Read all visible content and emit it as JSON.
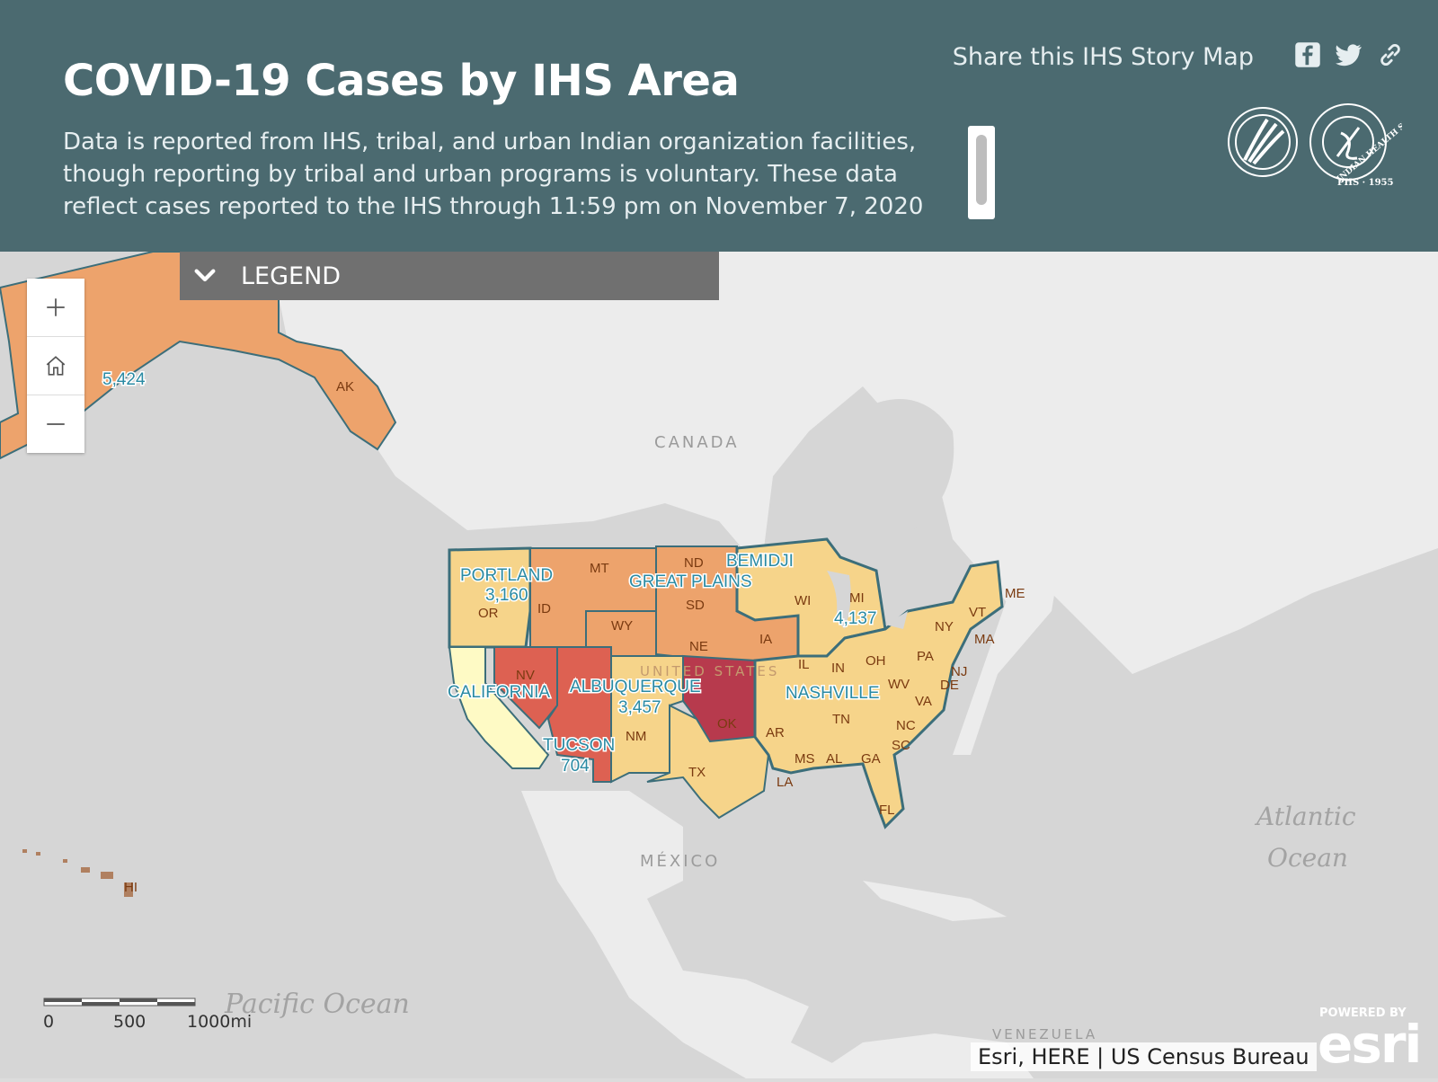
{
  "header": {
    "title": "COVID-19 Cases by IHS Area",
    "subtitle": "Data is reported from IHS, tribal, and urban Indian organization facilities, though reporting by tribal and urban programs is voluntary. These data reflect cases reported to the IHS through 11:59 pm on November 7, 2020",
    "share_label": "Share this IHS Story Map",
    "share_icons": [
      "facebook-icon",
      "twitter-icon",
      "link-icon"
    ]
  },
  "legend": {
    "label": "LEGEND"
  },
  "zoom_controls": [
    "zoom-in",
    "home",
    "zoom-out"
  ],
  "map": {
    "oceans": {
      "pacific": "Pacific Ocean",
      "atlantic_1": "Atlantic",
      "atlantic_2": "Ocean"
    },
    "countries": {
      "canada": "CANADA",
      "mexico": "MÉXICO",
      "venezuela": "VENEZUELA",
      "us_faint": "UNITED STATES"
    },
    "areas": {
      "alaska": {
        "count": "5,424"
      },
      "portland": {
        "name": "PORTLAND",
        "count": "3,160"
      },
      "california": {
        "name": "CALIFORNIA"
      },
      "great_plains": {
        "name": "GREAT PLAINS"
      },
      "bemidji": {
        "name": "BEMIDJI",
        "count": "4,137"
      },
      "albuquerque": {
        "name": "ALBUQUERQUE",
        "count": "3,457"
      },
      "tucson": {
        "name": "TUCSON",
        "count": "704"
      },
      "nashville": {
        "name": "NASHVILLE"
      }
    },
    "states": {
      "AK": "AK",
      "HI": "HI",
      "OR": "OR",
      "ID": "ID",
      "MT": "MT",
      "WY": "WY",
      "ND": "ND",
      "SD": "SD",
      "NE": "NE",
      "NV": "NV",
      "NM": "NM",
      "OK": "OK",
      "TX": "TX",
      "IA": "IA",
      "WI": "WI",
      "MI": "MI",
      "IL": "IL",
      "IN": "IN",
      "OH": "OH",
      "NY": "NY",
      "PA": "PA",
      "VT": "VT",
      "ME": "ME",
      "MA": "MA",
      "NJ": "NJ",
      "DE": "DE",
      "WV": "WV",
      "VA": "VA",
      "TN": "TN",
      "NC": "NC",
      "SC": "SC",
      "AR": "AR",
      "MS": "MS",
      "AL": "AL",
      "GA": "GA",
      "LA": "LA",
      "FL": "FL"
    },
    "fill_colors": {
      "lowest": "#fefac5",
      "low": "#f6d48a",
      "mid": "#eda36c",
      "high": "#dd6152",
      "highest": "#b73a4d",
      "border": "#3c6e7a"
    }
  },
  "scale": {
    "ticks": [
      "0",
      "500",
      "1000mi"
    ]
  },
  "attribution": "Esri, HERE | US Census Bureau",
  "esri": {
    "powered_by": "POWERED BY",
    "word": "esri"
  }
}
